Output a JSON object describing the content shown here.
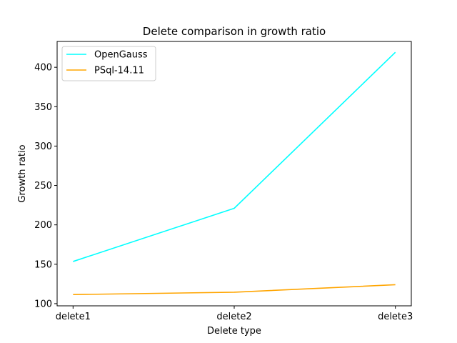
{
  "chart_data": {
    "type": "line",
    "title": "Delete comparison in growth ratio",
    "xlabel": "Delete type",
    "ylabel": "Growth ratio",
    "categories": [
      "delete1",
      "delete2",
      "delete3"
    ],
    "series": [
      {
        "name": "OpenGauss",
        "values": [
          153.5,
          221,
          419
        ],
        "color": "#00ffff"
      },
      {
        "name": "PSql-14.11",
        "values": [
          111.5,
          114.5,
          124
        ],
        "color": "#ffa500"
      }
    ],
    "ylim": [
      97.2,
      432.8
    ],
    "yticks": [
      100,
      150,
      200,
      250,
      300,
      350,
      400
    ],
    "grid": false,
    "legend_position": "upper-left"
  }
}
